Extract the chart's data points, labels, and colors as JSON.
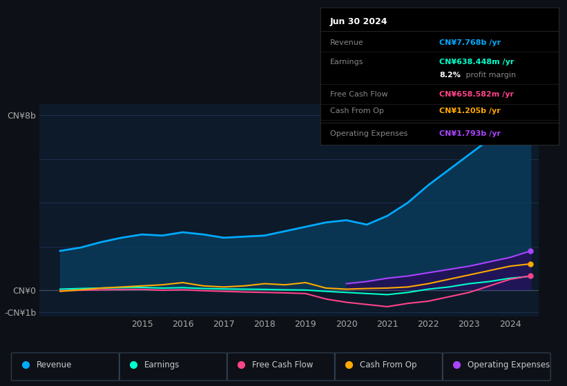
{
  "background_color": "#0d1117",
  "plot_bg_color": "#0d1a2a",
  "grid_color": "#1e3050",
  "text_color": "#aaaaaa",
  "title_color": "#ffffff",
  "ylabel_text": "CN¥8b",
  "ylabel_neg": "-CN¥1b",
  "ylabel_zero": "CN¥0",
  "ylim": [
    -1200000000.0,
    8500000000.0
  ],
  "yticks": [
    -1000000000.0,
    0,
    2000000000.0,
    4000000000.0,
    6000000000.0,
    8000000000.0
  ],
  "ytick_labels": [
    "-CN¥1b",
    "CN¥0",
    "",
    "",
    "",
    "CN¥8b"
  ],
  "x_years": [
    2013,
    2013.5,
    2014,
    2014.5,
    2015,
    2015.5,
    2016,
    2016.5,
    2017,
    2017.5,
    2018,
    2018.5,
    2019,
    2019.5,
    2020,
    2020.5,
    2021,
    2021.5,
    2022,
    2022.5,
    2023,
    2023.5,
    2024,
    2024.5
  ],
  "revenue": [
    1800000000.0,
    1950000000.0,
    2200000000.0,
    2400000000.0,
    2550000000.0,
    2500000000.0,
    2650000000.0,
    2550000000.0,
    2400000000.0,
    2450000000.0,
    2500000000.0,
    2700000000.0,
    2900000000.0,
    3100000000.0,
    3200000000.0,
    3000000000.0,
    3400000000.0,
    4000000000.0,
    4800000000.0,
    5500000000.0,
    6200000000.0,
    6900000000.0,
    7500000000.0,
    7768000000.0
  ],
  "earnings": [
    50000000.0,
    80000000.0,
    100000000.0,
    120000000.0,
    130000000.0,
    100000000.0,
    120000000.0,
    80000000.0,
    60000000.0,
    50000000.0,
    40000000.0,
    20000000.0,
    10000000.0,
    -50000000.0,
    -100000000.0,
    -150000000.0,
    -200000000.0,
    -100000000.0,
    50000000.0,
    150000000.0,
    300000000.0,
    400000000.0,
    550000000.0,
    638000000.0
  ],
  "free_cash_flow": [
    -20000000.0,
    0.0,
    20000000.0,
    30000000.0,
    40000000.0,
    0.0,
    20000000.0,
    -20000000.0,
    -50000000.0,
    -80000000.0,
    -100000000.0,
    -120000000.0,
    -150000000.0,
    -400000000.0,
    -550000000.0,
    -650000000.0,
    -750000000.0,
    -600000000.0,
    -500000000.0,
    -300000000.0,
    -100000000.0,
    200000000.0,
    500000000.0,
    658000000.0
  ],
  "cash_from_op": [
    -50000000.0,
    20000000.0,
    100000000.0,
    150000000.0,
    200000000.0,
    250000000.0,
    350000000.0,
    200000000.0,
    150000000.0,
    200000000.0,
    300000000.0,
    250000000.0,
    350000000.0,
    100000000.0,
    50000000.0,
    80000000.0,
    100000000.0,
    150000000.0,
    300000000.0,
    500000000.0,
    700000000.0,
    900000000.0,
    1100000000.0,
    1205000000.0
  ],
  "operating_expenses": [
    0.0,
    0.0,
    0.0,
    0.0,
    0.0,
    0.0,
    0.0,
    0.0,
    0.0,
    0.0,
    0.0,
    0.0,
    0.0,
    0.0,
    300000000.0,
    400000000.0,
    550000000.0,
    650000000.0,
    800000000.0,
    950000000.0,
    1100000000.0,
    1300000000.0,
    1500000000.0,
    1793000000.0
  ],
  "revenue_color": "#00aaff",
  "revenue_fill": "#0a3a5a",
  "earnings_color": "#00ffcc",
  "free_cash_flow_color": "#ff4488",
  "cash_from_op_color": "#ffaa00",
  "operating_expenses_color": "#aa44ff",
  "info_box": {
    "date": "Jun 30 2024",
    "revenue_label": "Revenue",
    "revenue_value": "CN¥7.768b /yr",
    "revenue_color": "#00aaff",
    "earnings_label": "Earnings",
    "earnings_value": "CN¥638.448m /yr",
    "earnings_color": "#00ffcc",
    "margin_text": "8.2%",
    "margin_label": " profit margin",
    "margin_text_color": "#ffffff",
    "fcf_label": "Free Cash Flow",
    "fcf_value": "CN¥658.582m /yr",
    "fcf_color": "#ff4488",
    "cashop_label": "Cash From Op",
    "cashop_value": "CN¥1.205b /yr",
    "cashop_color": "#ffaa00",
    "opex_label": "Operating Expenses",
    "opex_value": "CN¥1.793b /yr",
    "opex_color": "#aa44ff"
  },
  "legend_items": [
    {
      "label": "Revenue",
      "color": "#00aaff"
    },
    {
      "label": "Earnings",
      "color": "#00ffcc"
    },
    {
      "label": "Free Cash Flow",
      "color": "#ff4488"
    },
    {
      "label": "Cash From Op",
      "color": "#ffaa00"
    },
    {
      "label": "Operating Expenses",
      "color": "#aa44ff"
    }
  ],
  "xtick_years": [
    2015,
    2016,
    2017,
    2018,
    2019,
    2020,
    2021,
    2022,
    2023,
    2024
  ]
}
